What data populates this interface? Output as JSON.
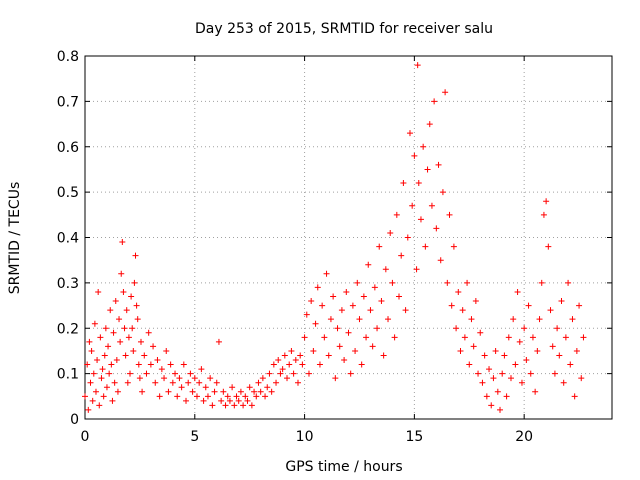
{
  "chart_data": {
    "type": "scatter",
    "title": "Day 253 of 2015, SRMTID for receiver salu",
    "xlabel": "GPS time / hours",
    "ylabel": "SRMTID / TECUs",
    "xlim": [
      0,
      24
    ],
    "ylim": [
      0,
      0.8
    ],
    "xticks": [
      0,
      5,
      10,
      15,
      20
    ],
    "yticks": [
      0,
      0.1,
      0.2,
      0.3,
      0.4,
      0.5,
      0.6,
      0.7,
      0.8
    ],
    "xtick_labels": [
      "0",
      "5",
      "10",
      "15",
      "20"
    ],
    "ytick_labels": [
      "0",
      "0.1",
      "0.2",
      "0.3",
      "0.4",
      "0.5",
      "0.6",
      "0.7",
      "0.8"
    ],
    "grid": true,
    "marker": "+",
    "color": "#ff0000",
    "series": [
      {
        "name": "SRMTID",
        "points": [
          [
            0.0,
            0.05
          ],
          [
            0.1,
            0.12
          ],
          [
            0.15,
            0.02
          ],
          [
            0.2,
            0.17
          ],
          [
            0.25,
            0.08
          ],
          [
            0.3,
            0.15
          ],
          [
            0.35,
            0.04
          ],
          [
            0.4,
            0.1
          ],
          [
            0.45,
            0.21
          ],
          [
            0.5,
            0.06
          ],
          [
            0.55,
            0.13
          ],
          [
            0.6,
            0.28
          ],
          [
            0.65,
            0.03
          ],
          [
            0.7,
            0.18
          ],
          [
            0.75,
            0.09
          ],
          [
            0.8,
            0.11
          ],
          [
            0.85,
            0.05
          ],
          [
            0.9,
            0.14
          ],
          [
            0.95,
            0.2
          ],
          [
            1.0,
            0.07
          ],
          [
            1.05,
            0.16
          ],
          [
            1.1,
            0.1
          ],
          [
            1.15,
            0.24
          ],
          [
            1.2,
            0.12
          ],
          [
            1.25,
            0.04
          ],
          [
            1.3,
            0.19
          ],
          [
            1.35,
            0.08
          ],
          [
            1.4,
            0.26
          ],
          [
            1.45,
            0.13
          ],
          [
            1.5,
            0.06
          ],
          [
            1.55,
            0.22
          ],
          [
            1.6,
            0.17
          ],
          [
            1.65,
            0.32
          ],
          [
            1.7,
            0.39
          ],
          [
            1.75,
            0.28
          ],
          [
            1.8,
            0.2
          ],
          [
            1.85,
            0.14
          ],
          [
            1.9,
            0.24
          ],
          [
            1.95,
            0.08
          ],
          [
            2.0,
            0.18
          ],
          [
            2.05,
            0.1
          ],
          [
            2.1,
            0.27
          ],
          [
            2.15,
            0.2
          ],
          [
            2.2,
            0.15
          ],
          [
            2.25,
            0.3
          ],
          [
            2.3,
            0.36
          ],
          [
            2.35,
            0.25
          ],
          [
            2.4,
            0.22
          ],
          [
            2.45,
            0.12
          ],
          [
            2.5,
            0.09
          ],
          [
            2.55,
            0.17
          ],
          [
            2.6,
            0.06
          ],
          [
            2.7,
            0.14
          ],
          [
            2.8,
            0.1
          ],
          [
            2.9,
            0.19
          ],
          [
            3.0,
            0.12
          ],
          [
            3.1,
            0.16
          ],
          [
            3.2,
            0.08
          ],
          [
            3.3,
            0.13
          ],
          [
            3.4,
            0.05
          ],
          [
            3.5,
            0.11
          ],
          [
            3.6,
            0.09
          ],
          [
            3.7,
            0.15
          ],
          [
            3.8,
            0.06
          ],
          [
            3.9,
            0.12
          ],
          [
            4.0,
            0.08
          ],
          [
            4.1,
            0.1
          ],
          [
            4.2,
            0.05
          ],
          [
            4.3,
            0.09
          ],
          [
            4.4,
            0.07
          ],
          [
            4.5,
            0.12
          ],
          [
            4.6,
            0.04
          ],
          [
            4.7,
            0.08
          ],
          [
            4.8,
            0.1
          ],
          [
            4.9,
            0.06
          ],
          [
            5.0,
            0.09
          ],
          [
            5.1,
            0.05
          ],
          [
            5.2,
            0.08
          ],
          [
            5.3,
            0.11
          ],
          [
            5.4,
            0.04
          ],
          [
            5.5,
            0.07
          ],
          [
            5.6,
            0.05
          ],
          [
            5.7,
            0.09
          ],
          [
            5.8,
            0.03
          ],
          [
            5.9,
            0.06
          ],
          [
            6.0,
            0.08
          ],
          [
            6.1,
            0.17
          ],
          [
            6.2,
            0.04
          ],
          [
            6.3,
            0.06
          ],
          [
            6.4,
            0.03
          ],
          [
            6.5,
            0.05
          ],
          [
            6.6,
            0.04
          ],
          [
            6.7,
            0.07
          ],
          [
            6.8,
            0.03
          ],
          [
            6.9,
            0.05
          ],
          [
            7.0,
            0.04
          ],
          [
            7.1,
            0.06
          ],
          [
            7.2,
            0.03
          ],
          [
            7.3,
            0.05
          ],
          [
            7.4,
            0.04
          ],
          [
            7.5,
            0.07
          ],
          [
            7.6,
            0.03
          ],
          [
            7.7,
            0.06
          ],
          [
            7.8,
            0.05
          ],
          [
            7.9,
            0.08
          ],
          [
            8.0,
            0.06
          ],
          [
            8.1,
            0.09
          ],
          [
            8.2,
            0.05
          ],
          [
            8.3,
            0.07
          ],
          [
            8.4,
            0.1
          ],
          [
            8.5,
            0.06
          ],
          [
            8.6,
            0.12
          ],
          [
            8.7,
            0.08
          ],
          [
            8.8,
            0.13
          ],
          [
            8.9,
            0.1
          ],
          [
            9.0,
            0.11
          ],
          [
            9.1,
            0.14
          ],
          [
            9.2,
            0.09
          ],
          [
            9.3,
            0.12
          ],
          [
            9.4,
            0.15
          ],
          [
            9.5,
            0.1
          ],
          [
            9.6,
            0.13
          ],
          [
            9.7,
            0.08
          ],
          [
            9.8,
            0.14
          ],
          [
            9.9,
            0.12
          ],
          [
            10.0,
            0.18
          ],
          [
            10.1,
            0.23
          ],
          [
            10.2,
            0.1
          ],
          [
            10.3,
            0.26
          ],
          [
            10.4,
            0.15
          ],
          [
            10.5,
            0.21
          ],
          [
            10.6,
            0.29
          ],
          [
            10.7,
            0.12
          ],
          [
            10.8,
            0.25
          ],
          [
            10.9,
            0.18
          ],
          [
            11.0,
            0.32
          ],
          [
            11.1,
            0.14
          ],
          [
            11.2,
            0.22
          ],
          [
            11.3,
            0.27
          ],
          [
            11.4,
            0.09
          ],
          [
            11.5,
            0.2
          ],
          [
            11.6,
            0.16
          ],
          [
            11.7,
            0.24
          ],
          [
            11.8,
            0.13
          ],
          [
            11.9,
            0.28
          ],
          [
            12.0,
            0.19
          ],
          [
            12.1,
            0.1
          ],
          [
            12.2,
            0.25
          ],
          [
            12.3,
            0.15
          ],
          [
            12.4,
            0.3
          ],
          [
            12.5,
            0.22
          ],
          [
            12.6,
            0.12
          ],
          [
            12.7,
            0.27
          ],
          [
            12.8,
            0.18
          ],
          [
            12.9,
            0.34
          ],
          [
            13.0,
            0.24
          ],
          [
            13.1,
            0.16
          ],
          [
            13.2,
            0.29
          ],
          [
            13.3,
            0.2
          ],
          [
            13.4,
            0.38
          ],
          [
            13.5,
            0.26
          ],
          [
            13.6,
            0.14
          ],
          [
            13.7,
            0.33
          ],
          [
            13.8,
            0.22
          ],
          [
            13.9,
            0.41
          ],
          [
            14.0,
            0.3
          ],
          [
            14.1,
            0.18
          ],
          [
            14.2,
            0.45
          ],
          [
            14.3,
            0.27
          ],
          [
            14.4,
            0.36
          ],
          [
            14.5,
            0.52
          ],
          [
            14.6,
            0.24
          ],
          [
            14.7,
            0.4
          ],
          [
            14.8,
            0.63
          ],
          [
            14.9,
            0.47
          ],
          [
            15.0,
            0.58
          ],
          [
            15.1,
            0.33
          ],
          [
            15.15,
            0.78
          ],
          [
            15.2,
            0.52
          ],
          [
            15.3,
            0.44
          ],
          [
            15.4,
            0.6
          ],
          [
            15.5,
            0.38
          ],
          [
            15.6,
            0.55
          ],
          [
            15.7,
            0.65
          ],
          [
            15.8,
            0.47
          ],
          [
            15.9,
            0.7
          ],
          [
            16.0,
            0.42
          ],
          [
            16.1,
            0.56
          ],
          [
            16.2,
            0.35
          ],
          [
            16.3,
            0.5
          ],
          [
            16.4,
            0.72
          ],
          [
            16.5,
            0.3
          ],
          [
            16.6,
            0.45
          ],
          [
            16.7,
            0.25
          ],
          [
            16.8,
            0.38
          ],
          [
            16.9,
            0.2
          ],
          [
            17.0,
            0.28
          ],
          [
            17.1,
            0.15
          ],
          [
            17.2,
            0.24
          ],
          [
            17.3,
            0.18
          ],
          [
            17.4,
            0.3
          ],
          [
            17.5,
            0.12
          ],
          [
            17.6,
            0.22
          ],
          [
            17.7,
            0.16
          ],
          [
            17.8,
            0.26
          ],
          [
            17.9,
            0.1
          ],
          [
            18.0,
            0.19
          ],
          [
            18.1,
            0.08
          ],
          [
            18.2,
            0.14
          ],
          [
            18.3,
            0.05
          ],
          [
            18.4,
            0.11
          ],
          [
            18.5,
            0.03
          ],
          [
            18.6,
            0.09
          ],
          [
            18.7,
            0.15
          ],
          [
            18.8,
            0.06
          ],
          [
            18.9,
            0.02
          ],
          [
            19.0,
            0.1
          ],
          [
            19.1,
            0.14
          ],
          [
            19.2,
            0.05
          ],
          [
            19.3,
            0.18
          ],
          [
            19.4,
            0.09
          ],
          [
            19.5,
            0.22
          ],
          [
            19.6,
            0.12
          ],
          [
            19.7,
            0.28
          ],
          [
            19.8,
            0.17
          ],
          [
            19.9,
            0.08
          ],
          [
            20.0,
            0.2
          ],
          [
            20.1,
            0.13
          ],
          [
            20.2,
            0.25
          ],
          [
            20.3,
            0.1
          ],
          [
            20.4,
            0.18
          ],
          [
            20.5,
            0.06
          ],
          [
            20.6,
            0.15
          ],
          [
            20.7,
            0.22
          ],
          [
            20.8,
            0.3
          ],
          [
            20.9,
            0.45
          ],
          [
            21.0,
            0.48
          ],
          [
            21.1,
            0.38
          ],
          [
            21.2,
            0.24
          ],
          [
            21.3,
            0.16
          ],
          [
            21.4,
            0.1
          ],
          [
            21.5,
            0.2
          ],
          [
            21.6,
            0.14
          ],
          [
            21.7,
            0.26
          ],
          [
            21.8,
            0.08
          ],
          [
            21.9,
            0.18
          ],
          [
            22.0,
            0.3
          ],
          [
            22.1,
            0.12
          ],
          [
            22.2,
            0.22
          ],
          [
            22.3,
            0.05
          ],
          [
            22.4,
            0.15
          ],
          [
            22.5,
            0.25
          ],
          [
            22.6,
            0.09
          ],
          [
            22.7,
            0.18
          ]
        ]
      }
    ]
  }
}
